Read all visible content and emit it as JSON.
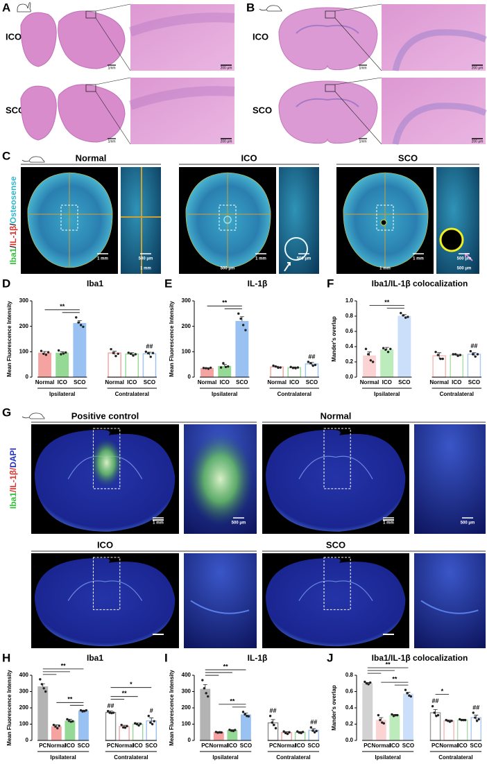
{
  "panel_A": {
    "letter": "A",
    "rows": [
      {
        "group": "ICO",
        "scale_overview": "1mm",
        "scale_zoom": "200 μm"
      },
      {
        "group": "SCO",
        "scale_overview": "1mm",
        "scale_zoom": "200 μm"
      }
    ]
  },
  "panel_B": {
    "letter": "B",
    "rows": [
      {
        "group": "ICO",
        "scale_overview": "1mm",
        "scale_zoom": "200 μm"
      },
      {
        "group": "SCO",
        "scale_overview": "1mm",
        "scale_zoom": "200 μm"
      }
    ]
  },
  "panel_C": {
    "letter": "C",
    "stain": [
      "Iba1",
      "/",
      "IL-1β",
      "/",
      "Osteosense"
    ],
    "stain_colors": [
      "#2fc236",
      "#222222",
      "#e0302a",
      "#222222",
      "#2fb8cc"
    ],
    "columns": [
      {
        "title": "Normal",
        "overview_scales": [
          "1 mm"
        ],
        "zoom_scales": [
          "500 μm",
          "1 mm"
        ]
      },
      {
        "title": "ICO",
        "overview_scales": [
          "1 mm",
          "500 μm"
        ],
        "zoom_scales": [
          "500 μm"
        ]
      },
      {
        "title": "SCO",
        "overview_scales": [
          "1 mm",
          "1 mm"
        ],
        "zoom_scales": [
          "500 μm",
          "500 μm"
        ]
      }
    ]
  },
  "panel_G": {
    "letter": "G",
    "stain": [
      "Iba1",
      "/",
      "IL-1β",
      "/",
      "DAPI"
    ],
    "stain_colors": [
      "#2fc236",
      "#e0302a",
      "#e0302a",
      "#e0302a",
      "#2030c8"
    ],
    "columns": [
      {
        "title": "Positive control",
        "overview_scales": [
          "1 mm"
        ],
        "zoom_scales": [
          "500 μm"
        ]
      },
      {
        "title": "Normal",
        "overview_scales": [
          "1 mm"
        ],
        "zoom_scales": [
          "500 μm"
        ]
      },
      {
        "title": "ICO"
      },
      {
        "title": "SCO"
      }
    ]
  },
  "chart_data": [
    {
      "type": "bar",
      "panel": "D",
      "title": "Iba1",
      "ylabel": "Mean Fluorescence Intensity",
      "ylim": [
        0,
        300
      ],
      "yticks": [
        0,
        100,
        200,
        300
      ],
      "groups": [
        {
          "name": "Ipsilateral",
          "filled": true,
          "categories": [
            "Normal",
            "ICO",
            "SCO"
          ],
          "colors": [
            "#f4a3a0",
            "#96d996",
            "#99c2f2"
          ],
          "values": [
            95,
            95,
            212
          ],
          "errors": [
            6,
            5,
            10
          ],
          "points": [
            [
              103,
              92,
              88,
              98
            ],
            [
              105,
              90,
              93,
              97
            ],
            [
              235,
              215,
              205,
              198
            ]
          ],
          "brackets": [
            {
              "text": "**",
              "from": "SCO",
              "to": [
                "ICO",
                "Normal"
              ]
            }
          ]
        },
        {
          "name": "Contralateral",
          "filled": false,
          "categories": [
            "Normal",
            "ICO",
            "SCO"
          ],
          "colors": [
            "#f4a3a0",
            "#96d996",
            "#99c2f2"
          ],
          "values": [
            95,
            91,
            92
          ],
          "errors": [
            7,
            5,
            6
          ],
          "points": [
            [
              110,
              95,
              83,
              92
            ],
            [
              96,
              92,
              85,
              90
            ],
            [
              100,
              94,
              80,
              95
            ]
          ],
          "significance": [
            null,
            null,
            "##"
          ]
        }
      ]
    },
    {
      "type": "bar",
      "panel": "E",
      "title": "IL-1β",
      "ylabel": "Mean Fluorescence Intensity",
      "ylim": [
        0,
        300
      ],
      "yticks": [
        0,
        100,
        200,
        300
      ],
      "groups": [
        {
          "name": "Ipsilateral",
          "filled": true,
          "categories": [
            "Normal",
            "ICO",
            "SCO"
          ],
          "colors": [
            "#f4a3a0",
            "#96d996",
            "#99c2f2"
          ],
          "values": [
            35,
            43,
            220
          ],
          "errors": [
            2,
            7,
            18
          ],
          "points": [
            [
              36,
              35,
              33,
              37
            ],
            [
              38,
              55,
              40,
              42
            ],
            [
              250,
              230,
              205,
              185
            ]
          ],
          "brackets": [
            {
              "text": "**",
              "from": "SCO",
              "to": [
                "ICO",
                "Normal"
              ]
            }
          ]
        },
        {
          "name": "Contralateral",
          "filled": false,
          "categories": [
            "Normal",
            "ICO",
            "SCO"
          ],
          "colors": [
            "#f4a3a0",
            "#96d996",
            "#99c2f2"
          ],
          "values": [
            40,
            37,
            52
          ],
          "errors": [
            3,
            3,
            6
          ],
          "points": [
            [
              45,
              42,
              37,
              38
            ],
            [
              40,
              36,
              35,
              38
            ],
            [
              60,
              55,
              45,
              48
            ]
          ],
          "significance": [
            null,
            null,
            "##"
          ]
        }
      ]
    },
    {
      "type": "bar",
      "panel": "F",
      "title": "Iba1/IL-1β colocalization",
      "ylabel": "Mander's overlap",
      "ylim": [
        0,
        1
      ],
      "yticks": [
        {
          "value": 0,
          "label": "0.0"
        },
        0.2,
        0.4,
        0.6,
        0.8,
        {
          "value": 1,
          "label": "1.0"
        }
      ],
      "groups": [
        {
          "name": "Ipsilateral",
          "filled": true,
          "categories": [
            "Normal",
            "ICO",
            "SCO"
          ],
          "colors": [
            "#fbd3d2",
            "#bcebbc",
            "#cbdefa"
          ],
          "values": [
            0.28,
            0.36,
            0.8
          ],
          "errors": [
            0.05,
            0.03,
            0.02
          ],
          "points": [
            [
              0.37,
              0.3,
              0.22,
              0.2
            ],
            [
              0.38,
              0.36,
              0.33,
              0.37
            ],
            [
              0.84,
              0.81,
              0.78,
              0.79
            ]
          ],
          "brackets": [
            {
              "text": "**",
              "from": "SCO",
              "to": [
                "ICO",
                "Normal"
              ]
            }
          ]
        },
        {
          "name": "Contralateral",
          "filled": false,
          "categories": [
            "Normal",
            "ICO",
            "SCO"
          ],
          "colors": [
            "#f6b5b3",
            "#a6e0a6",
            "#a9c9f2"
          ],
          "values": [
            0.28,
            0.29,
            0.3
          ],
          "errors": [
            0.04,
            0.01,
            0.02
          ],
          "points": [
            [
              0.33,
              0.29,
              0.24,
              0.24
            ],
            [
              0.3,
              0.3,
              0.28,
              0.29
            ],
            [
              0.34,
              0.3,
              0.27,
              0.3
            ]
          ],
          "significance": [
            null,
            null,
            "##"
          ]
        }
      ]
    },
    {
      "type": "bar",
      "panel": "H",
      "title": "Iba1",
      "ylabel": "Mean Fluorescence Intensity",
      "ylim": [
        0,
        400
      ],
      "yticks": [
        0,
        100,
        200,
        300,
        400
      ],
      "groups": [
        {
          "name": "Ipsilateral",
          "filled": true,
          "categories": [
            "PC",
            "Normal",
            "ICO",
            "SCO"
          ],
          "colors": [
            "#b3b3b3",
            "#f4a3a0",
            "#96d996",
            "#99c2f2"
          ],
          "values": [
            330,
            85,
            120,
            182
          ],
          "errors": [
            18,
            10,
            10,
            4
          ],
          "points": [
            [
              375,
              345,
              320,
              300
            ],
            [
              95,
              85,
              75,
              90
            ],
            [
              130,
              120,
              115,
              118
            ],
            [
              185,
              178,
              180,
              185
            ]
          ],
          "brackets": [
            {
              "text": "**",
              "from": "SCO",
              "to": [
                "ICO",
                "Normal"
              ]
            },
            {
              "text": "**",
              "from": "PC",
              "to": [
                "Normal",
                "ICO",
                "SCO"
              ]
            }
          ]
        },
        {
          "name": "Contralateral",
          "filled": false,
          "categories": [
            "PC",
            "Normal",
            "ICO",
            "SCO"
          ],
          "colors": [
            "#8c8c8c",
            "#f4a3a0",
            "#96d996",
            "#99c2f2"
          ],
          "values": [
            172,
            85,
            100,
            120
          ],
          "errors": [
            8,
            8,
            7,
            18
          ],
          "points": [
            [
              180,
              170,
              168,
              170
            ],
            [
              95,
              80,
              78,
              88
            ],
            [
              105,
              100,
              92,
              102
            ],
            [
              150,
              110,
              100,
              118
            ]
          ],
          "significance": [
            "##",
            null,
            null,
            "#"
          ],
          "brackets": [
            {
              "text": "**",
              "from": "PC",
              "to": [
                "Normal",
                "ICO"
              ]
            },
            {
              "text": "*",
              "from": "PC",
              "to": [
                "SCO"
              ]
            }
          ]
        }
      ]
    },
    {
      "type": "bar",
      "panel": "I",
      "title": "IL-1β",
      "ylabel": "Mean Fluorescence Intensity",
      "ylim": [
        0,
        400
      ],
      "yticks": [
        0,
        100,
        200,
        300,
        400
      ],
      "groups": [
        {
          "name": "Ipsilateral",
          "filled": true,
          "categories": [
            "PC",
            "Normal",
            "ICO",
            "SCO"
          ],
          "colors": [
            "#b3b3b3",
            "#f4a3a0",
            "#96d996",
            "#99c2f2"
          ],
          "values": [
            315,
            50,
            62,
            158
          ],
          "errors": [
            28,
            3,
            4,
            10
          ],
          "points": [
            [
              370,
              320,
              290,
              270
            ],
            [
              52,
              48,
              50,
              49
            ],
            [
              65,
              60,
              58,
              64
            ],
            [
              175,
              160,
              150,
              148
            ]
          ],
          "brackets": [
            {
              "text": "**",
              "from": "SCO",
              "to": [
                "ICO",
                "Normal"
              ]
            },
            {
              "text": "**",
              "from": "PC",
              "to": [
                "Normal",
                "ICO",
                "SCO"
              ]
            }
          ]
        },
        {
          "name": "Contralateral",
          "filled": false,
          "categories": [
            "PC",
            "Normal",
            "ICO",
            "SCO"
          ],
          "colors": [
            "#8c8c8c",
            "#f4a3a0",
            "#96d996",
            "#99c2f2"
          ],
          "values": [
            108,
            48,
            50,
            62
          ],
          "errors": [
            20,
            5,
            4,
            10
          ],
          "points": [
            [
              150,
              110,
              95,
              75
            ],
            [
              55,
              45,
              40,
              50
            ],
            [
              55,
              48,
              45,
              52
            ],
            [
              80,
              60,
              50,
              58
            ]
          ],
          "significance": [
            "##",
            null,
            null,
            "##"
          ]
        }
      ]
    },
    {
      "type": "bar",
      "panel": "J",
      "title": "Iba1/IL-1β colocalization",
      "ylabel": "Mander's overlap",
      "ylim": [
        0,
        0.8
      ],
      "yticks": [
        {
          "value": 0,
          "label": "0.0"
        },
        0.2,
        0.4,
        0.6,
        0.8
      ],
      "groups": [
        {
          "name": "Ipsilateral",
          "filled": true,
          "categories": [
            "PC",
            "Normal",
            "ICO",
            "SCO"
          ],
          "colors": [
            "#d2d2d2",
            "#fbd3d2",
            "#bcebbc",
            "#cbdefa"
          ],
          "values": [
            0.7,
            0.25,
            0.31,
            0.57
          ],
          "errors": [
            0.01,
            0.03,
            0.01,
            0.02
          ],
          "points": [
            [
              0.72,
              0.7,
              0.69,
              0.71
            ],
            [
              0.31,
              0.25,
              0.22,
              0.21
            ],
            [
              0.32,
              0.3,
              0.31,
              0.31
            ],
            [
              0.62,
              0.58,
              0.55,
              0.54
            ]
          ],
          "brackets": [
            {
              "text": "**",
              "from": "SCO",
              "to": [
                "ICO",
                "Normal"
              ]
            },
            {
              "text": "**",
              "from": "PC",
              "to": [
                "Normal",
                "ICO",
                "SCO"
              ]
            }
          ]
        },
        {
          "name": "Contralateral",
          "filled": false,
          "categories": [
            "PC",
            "Normal",
            "ICO",
            "SCO"
          ],
          "colors": [
            "#9a9a9a",
            "#f6b5b3",
            "#a6e0a6",
            "#a9c9f2"
          ],
          "values": [
            0.34,
            0.24,
            0.25,
            0.28
          ],
          "errors": [
            0.04,
            0.01,
            0.01,
            0.03
          ],
          "points": [
            [
              0.42,
              0.34,
              0.3,
              0.31
            ],
            [
              0.25,
              0.24,
              0.23,
              0.24
            ],
            [
              0.26,
              0.25,
              0.25,
              0.25
            ],
            [
              0.34,
              0.28,
              0.24,
              0.26
            ]
          ],
          "significance": [
            "##",
            null,
            null,
            "##"
          ],
          "brackets": [
            {
              "text": "*",
              "from": "PC",
              "to": [
                "Normal"
              ]
            }
          ]
        }
      ]
    }
  ]
}
